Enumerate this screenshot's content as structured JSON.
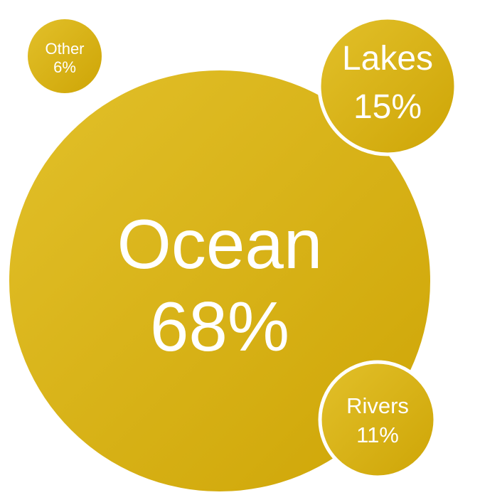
{
  "chart_data": {
    "type": "bubble",
    "title": "",
    "colors": {
      "fill_light": "#E2C02A",
      "fill_dark": "#CEA506",
      "stroke": "#ffffff",
      "text": "#ffffff"
    },
    "series": [
      {
        "name": "Ocean",
        "label": "Ocean",
        "value_label": "68%",
        "value": 68
      },
      {
        "name": "Lakes",
        "label": "Lakes",
        "value_label": "15%",
        "value": 15
      },
      {
        "name": "Rivers",
        "label": "Rivers",
        "value_label": "11%",
        "value": 11
      },
      {
        "name": "Other",
        "label": "Other",
        "value_label": "6%",
        "value": 6
      }
    ]
  }
}
